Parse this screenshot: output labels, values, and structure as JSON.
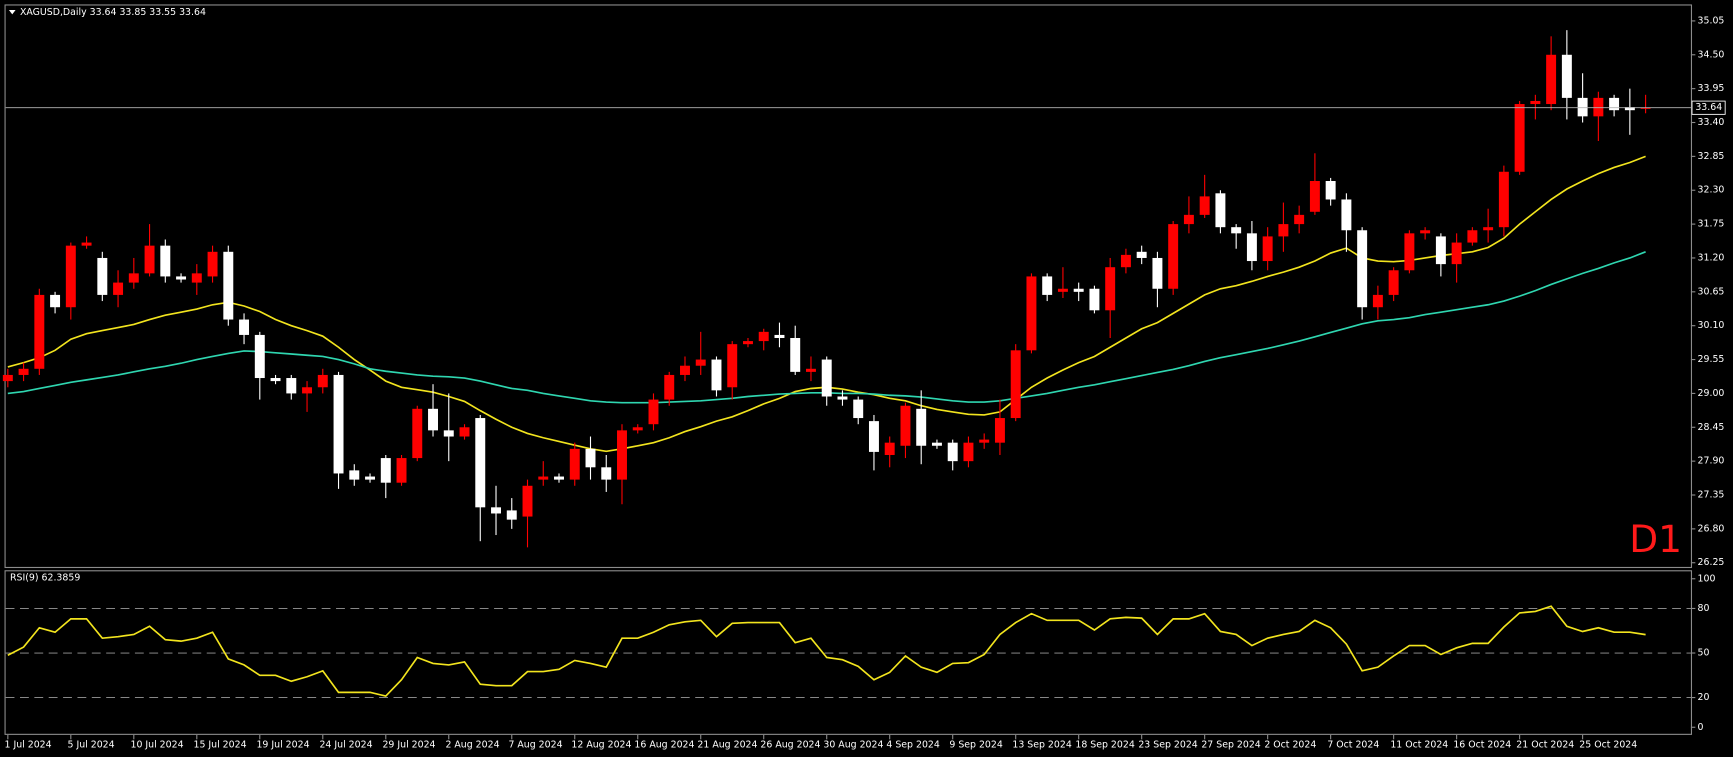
{
  "chart_data": [
    {
      "type": "candlestick",
      "title": "XAGUSD,Daily  33.64 33.85 33.55 33.64",
      "annotation": "D1",
      "categories": [
        "1 Jul 2024",
        null,
        null,
        null,
        "5 Jul 2024",
        null,
        null,
        null,
        "10 Jul 2024",
        null,
        null,
        null,
        "15 Jul 2024",
        null,
        null,
        null,
        "19 Jul 2024",
        null,
        null,
        null,
        "24 Jul 2024",
        null,
        null,
        null,
        "29 Jul 2024",
        null,
        null,
        null,
        "2 Aug 2024",
        null,
        null,
        null,
        "7 Aug 2024",
        null,
        null,
        null,
        "12 Aug 2024",
        null,
        null,
        null,
        "16 Aug 2024",
        null,
        null,
        null,
        "21 Aug 2024",
        null,
        null,
        null,
        "26 Aug 2024",
        null,
        null,
        null,
        "30 Aug 2024",
        null,
        null,
        null,
        "4 Sep 2024",
        null,
        null,
        null,
        "9 Sep 2024",
        null,
        null,
        null,
        "13 Sep 2024",
        null,
        null,
        null,
        "18 Sep 2024",
        null,
        null,
        null,
        "23 Sep 2024",
        null,
        null,
        null,
        "27 Sep 2024",
        null,
        null,
        null,
        "2 Oct 2024",
        null,
        null,
        null,
        "7 Oct 2024",
        null,
        null,
        null,
        "11 Oct 2024",
        null,
        null,
        null,
        "16 Oct 2024",
        null,
        null,
        null,
        "21 Oct 2024",
        null,
        null,
        null,
        "25 Oct 2024",
        null,
        null,
        null,
        null
      ],
      "open": [
        29.2,
        29.3,
        29.4,
        30.6,
        30.4,
        31.4,
        31.2,
        30.6,
        30.8,
        30.95,
        31.4,
        30.9,
        30.8,
        30.9,
        31.3,
        30.2,
        29.95,
        29.25,
        29.25,
        29.0,
        29.1,
        29.3,
        27.75,
        27.65,
        27.95,
        27.55,
        27.95,
        28.75,
        28.4,
        28.3,
        28.6,
        27.15,
        27.1,
        27.0,
        27.6,
        27.65,
        27.6,
        28.1,
        27.8,
        27.6,
        28.4,
        28.5,
        28.9,
        29.3,
        29.45,
        29.55,
        29.1,
        29.8,
        29.85,
        29.95,
        29.9,
        29.35,
        29.55,
        28.95,
        28.9,
        28.55,
        28.0,
        28.15,
        28.75,
        28.2,
        28.2,
        27.9,
        28.2,
        28.2,
        28.6,
        29.7,
        30.9,
        30.65,
        30.7,
        30.7,
        30.35,
        31.05,
        31.3,
        31.2,
        30.7,
        31.75,
        31.9,
        32.25,
        31.7,
        31.6,
        31.15,
        31.55,
        31.75,
        31.95,
        32.45,
        32.15,
        31.65,
        30.4,
        30.6,
        31.0,
        31.6,
        31.55,
        31.1,
        31.45,
        31.65,
        31.7,
        32.6,
        33.7,
        33.7,
        34.5,
        33.8,
        33.5,
        33.8,
        33.65,
        33.64
      ],
      "high": [
        29.4,
        29.5,
        30.7,
        30.65,
        31.45,
        31.55,
        31.3,
        31.0,
        31.2,
        31.75,
        31.5,
        30.95,
        31.1,
        31.4,
        31.4,
        30.3,
        30.0,
        29.3,
        29.3,
        29.2,
        29.4,
        29.35,
        27.85,
        27.7,
        28.0,
        28.0,
        28.8,
        29.15,
        29.0,
        28.5,
        28.65,
        27.5,
        27.3,
        27.6,
        27.9,
        27.7,
        28.2,
        28.3,
        28.0,
        28.5,
        28.5,
        29.0,
        29.35,
        29.6,
        30.0,
        29.6,
        29.85,
        29.9,
        30.05,
        30.15,
        30.1,
        29.6,
        29.6,
        29.05,
        28.95,
        28.65,
        28.3,
        28.85,
        29.05,
        28.25,
        28.25,
        28.3,
        28.35,
        28.9,
        29.8,
        30.95,
        30.95,
        31.05,
        30.8,
        30.75,
        31.2,
        31.35,
        31.4,
        31.3,
        31.8,
        32.2,
        32.55,
        32.3,
        31.75,
        31.8,
        31.7,
        32.1,
        32.05,
        32.9,
        32.5,
        32.25,
        31.7,
        30.75,
        31.05,
        31.65,
        31.7,
        31.6,
        31.6,
        31.7,
        32.0,
        32.7,
        33.75,
        33.85,
        34.8,
        34.9,
        34.2,
        33.9,
        33.85,
        33.95,
        33.85
      ],
      "low": [
        29.1,
        29.2,
        29.3,
        30.3,
        30.2,
        31.35,
        30.5,
        30.4,
        30.7,
        30.9,
        30.8,
        30.8,
        30.6,
        30.8,
        30.1,
        29.8,
        28.9,
        29.15,
        28.9,
        28.7,
        29.0,
        27.45,
        27.5,
        27.55,
        27.3,
        27.5,
        27.9,
        28.3,
        27.9,
        28.25,
        26.6,
        26.7,
        26.8,
        26.5,
        27.5,
        27.55,
        27.5,
        27.6,
        27.4,
        27.2,
        28.35,
        28.4,
        28.8,
        29.2,
        29.3,
        28.95,
        28.9,
        29.75,
        29.7,
        29.75,
        29.3,
        29.2,
        28.8,
        28.8,
        28.5,
        27.75,
        27.8,
        27.95,
        27.85,
        28.1,
        27.75,
        27.8,
        28.1,
        28.0,
        28.55,
        29.65,
        30.5,
        30.55,
        30.5,
        30.3,
        29.9,
        30.95,
        31.1,
        30.4,
        30.6,
        31.6,
        31.85,
        31.6,
        31.35,
        31.0,
        31.0,
        31.3,
        31.6,
        31.9,
        32.05,
        31.3,
        30.2,
        30.2,
        30.5,
        30.95,
        31.5,
        30.9,
        30.8,
        31.4,
        31.45,
        31.55,
        32.55,
        33.45,
        33.6,
        33.45,
        33.4,
        33.1,
        33.5,
        33.2,
        33.55
      ],
      "close": [
        29.3,
        29.4,
        30.6,
        30.4,
        31.4,
        31.45,
        30.6,
        30.8,
        30.95,
        31.4,
        30.9,
        30.85,
        30.95,
        31.3,
        30.2,
        29.95,
        29.25,
        29.2,
        29.0,
        29.1,
        29.3,
        27.7,
        27.6,
        27.6,
        27.55,
        27.95,
        28.75,
        28.4,
        28.3,
        28.45,
        27.15,
        27.05,
        26.95,
        27.5,
        27.65,
        27.6,
        28.1,
        27.8,
        27.6,
        28.4,
        28.45,
        28.9,
        29.3,
        29.45,
        29.55,
        29.05,
        29.8,
        29.85,
        30.0,
        29.9,
        29.35,
        29.4,
        28.95,
        28.9,
        28.6,
        28.05,
        28.2,
        28.8,
        28.15,
        28.15,
        27.9,
        28.2,
        28.25,
        28.6,
        29.7,
        30.9,
        30.6,
        30.7,
        30.65,
        30.35,
        31.05,
        31.25,
        31.2,
        30.7,
        31.75,
        31.9,
        32.2,
        31.7,
        31.6,
        31.15,
        31.55,
        31.75,
        31.9,
        32.45,
        32.15,
        31.65,
        30.4,
        30.6,
        31.0,
        31.6,
        31.65,
        31.1,
        31.45,
        31.65,
        31.7,
        32.6,
        33.7,
        33.75,
        34.5,
        33.8,
        33.5,
        33.8,
        33.6,
        33.6,
        33.64
      ],
      "up_color": "#ff0000",
      "down_color": "#ffffff",
      "lines": [
        {
          "color": "#f2e41e",
          "values": [
            29.43,
            29.5,
            29.58,
            29.7,
            29.88,
            29.97,
            30.02,
            30.07,
            30.12,
            30.2,
            30.27,
            30.32,
            30.37,
            30.44,
            30.48,
            30.42,
            30.33,
            30.2,
            30.1,
            30.02,
            29.93,
            29.75,
            29.55,
            29.38,
            29.2,
            29.1,
            29.06,
            29.02,
            28.95,
            28.87,
            28.72,
            28.58,
            28.45,
            28.35,
            28.28,
            28.22,
            28.16,
            28.1,
            28.06,
            28.1,
            28.15,
            28.2,
            28.28,
            28.38,
            28.46,
            28.55,
            28.62,
            28.72,
            28.83,
            28.92,
            29.03,
            29.08,
            29.1,
            29.07,
            29.02,
            28.98,
            28.92,
            28.88,
            28.8,
            28.74,
            28.7,
            28.66,
            28.65,
            28.7,
            28.9,
            29.1,
            29.25,
            29.38,
            29.5,
            29.6,
            29.75,
            29.9,
            30.05,
            30.15,
            30.3,
            30.45,
            30.6,
            30.7,
            30.75,
            30.82,
            30.9,
            30.97,
            31.05,
            31.15,
            31.28,
            31.36,
            31.2,
            31.15,
            31.14,
            31.16,
            31.2,
            31.24,
            31.27,
            31.3,
            31.37,
            31.52,
            31.75,
            31.95,
            32.15,
            32.32,
            32.45,
            32.57,
            32.67,
            32.75,
            32.85
          ]
        },
        {
          "color": "#2fd6b0",
          "values": [
            29.0,
            29.03,
            29.08,
            29.13,
            29.18,
            29.22,
            29.26,
            29.3,
            29.35,
            29.4,
            29.44,
            29.49,
            29.55,
            29.6,
            29.65,
            29.69,
            29.68,
            29.66,
            29.64,
            29.62,
            29.6,
            29.55,
            29.48,
            29.4,
            29.36,
            29.33,
            29.3,
            29.28,
            29.27,
            29.25,
            29.2,
            29.14,
            29.08,
            29.05,
            29.0,
            28.96,
            28.92,
            28.88,
            28.86,
            28.85,
            28.85,
            28.85,
            28.86,
            28.87,
            28.88,
            28.9,
            28.92,
            28.95,
            28.97,
            28.99,
            29.0,
            29.01,
            29.01,
            29.0,
            29.0,
            28.99,
            28.97,
            28.96,
            28.94,
            28.91,
            28.88,
            28.86,
            28.86,
            28.88,
            28.92,
            28.96,
            29.0,
            29.05,
            29.1,
            29.14,
            29.19,
            29.24,
            29.29,
            29.34,
            29.39,
            29.45,
            29.52,
            29.58,
            29.63,
            29.68,
            29.73,
            29.79,
            29.85,
            29.92,
            29.99,
            30.06,
            30.13,
            30.18,
            30.2,
            30.23,
            30.28,
            30.32,
            30.36,
            30.4,
            30.44,
            30.5,
            30.58,
            30.67,
            30.77,
            30.86,
            30.95,
            31.03,
            31.12,
            31.2,
            31.3
          ]
        }
      ],
      "current_price": 33.64,
      "ylim": [
        26.2,
        35.3
      ],
      "yticks": [
        35.05,
        {
          "value": 34.5,
          "label": "34.50"
        },
        33.95,
        {
          "value": 33.4,
          "label": "33.40"
        },
        32.85,
        {
          "value": 32.3,
          "label": "32.30"
        },
        31.75,
        {
          "value": 31.2,
          "label": "31.20"
        },
        30.65,
        {
          "value": 30.1,
          "label": "30.10"
        },
        29.55,
        {
          "value": 29,
          "label": "29.00"
        },
        28.45,
        {
          "value": 27.9,
          "label": "27.90"
        },
        27.35,
        {
          "value": 26.8,
          "label": "26.80"
        },
        26.25
      ]
    },
    {
      "type": "line",
      "title": "RSI(9) 62.3859",
      "color": "#f2e41e",
      "values": [
        48.5,
        54,
        67,
        64,
        73,
        73,
        60,
        61,
        62.5,
        68,
        59,
        58,
        60,
        64,
        46,
        42,
        35,
        35,
        31,
        34,
        38,
        23.5,
        23.5,
        23.5,
        21,
        32,
        47,
        43,
        42,
        44,
        29,
        28,
        28,
        37.5,
        37.5,
        39,
        45,
        43,
        40.5,
        60,
        60,
        64,
        69,
        71,
        72,
        61,
        70,
        70.5,
        70.5,
        70.5,
        57,
        60,
        47,
        45.5,
        41,
        32,
        37,
        48,
        40.5,
        37,
        43,
        43.5,
        49,
        62.5,
        70.5,
        76.5,
        72,
        72,
        72,
        65.5,
        73,
        74,
        73.5,
        62.5,
        73,
        73,
        76.5,
        64.5,
        62.5,
        55,
        60,
        62.5,
        64.5,
        72,
        67,
        56,
        38,
        40.5,
        48,
        55,
        55,
        49,
        53.5,
        56.5,
        56.5,
        67.5,
        77,
        78,
        81.5,
        68,
        64.5,
        67,
        64,
        64,
        62.3859
      ],
      "levels": [
        80,
        50,
        20
      ],
      "ylim": [
        -4.4,
        105
      ],
      "yticks": [
        100,
        80,
        50,
        20,
        0
      ]
    }
  ]
}
